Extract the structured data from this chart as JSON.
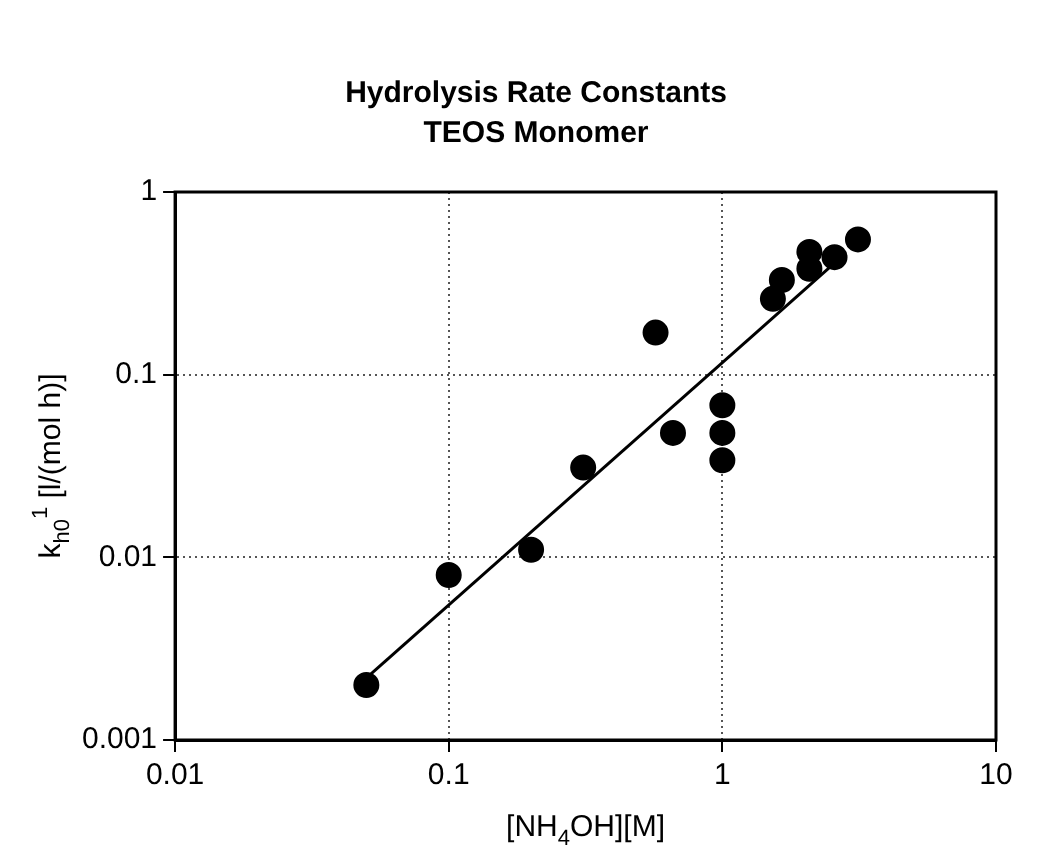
{
  "chart_data": {
    "type": "scatter",
    "title": "Hydrolysis Rate Constants",
    "subtitle": "TEOS Monomer",
    "xlabel": "[NH$_{4}$OH][M]",
    "ylabel": "k$_{h0}$$^{1}$ [l/(mol h)]",
    "log": "xy",
    "grid": true,
    "marker": "circle",
    "xlim": [
      0.01,
      10
    ],
    "ylim": [
      0.001,
      1
    ],
    "xticks": [
      0.01,
      0.1,
      1,
      10
    ],
    "yticks": [
      0.001,
      0.01,
      0.1,
      1
    ],
    "series": [
      {
        "color": "#000000",
        "x": [
          0.05,
          0.1,
          0.2,
          0.31,
          0.57,
          0.66,
          1,
          1,
          1,
          1.53,
          1.65,
          2.08,
          2.08,
          2.57,
          3.13
        ],
        "values": [
          0.002,
          0.008,
          0.011,
          0.031,
          0.17,
          0.048,
          0.068,
          0.048,
          0.034,
          0.26,
          0.33,
          0.47,
          0.38,
          0.44,
          0.55
        ]
      },
      {
        "type": "line",
        "color": "#000000",
        "marker": "none",
        "x": [
          0.052,
          2.58
        ],
        "values": [
          0.0023,
          0.41
        ]
      }
    ]
  }
}
